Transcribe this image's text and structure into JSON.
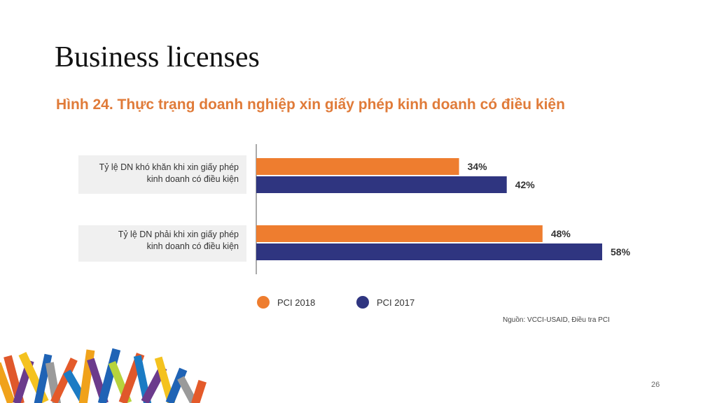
{
  "slide": {
    "title": "Business licenses",
    "page_number": "26"
  },
  "colors": {
    "pci2018": "#ee7d2f",
    "pci2017": "#2f3580",
    "title_orange": "#e07b39"
  },
  "chart_data": {
    "type": "bar",
    "orientation": "horizontal",
    "title": "Hình 24. Thực trạng doanh nghiệp xin giấy phép kinh doanh có điều kiện",
    "categories": [
      [
        "Tỷ lệ DN khó khăn khi xin giấy phép",
        "kinh doanh có điều kiện"
      ],
      [
        "Tỷ lệ DN phải khi xin giấy phép",
        "kinh doanh có điều kiện"
      ]
    ],
    "series": [
      {
        "name": "PCI 2018",
        "values": [
          34,
          48
        ],
        "labels": [
          "34%",
          "48%"
        ]
      },
      {
        "name": "PCI 2017",
        "values": [
          42,
          58
        ],
        "labels": [
          "42%",
          "58%"
        ]
      }
    ],
    "xlim": [
      0,
      100
    ],
    "legend": "bottom",
    "source": "Nguồn: VCCI-USAID, Điều tra PCI"
  }
}
